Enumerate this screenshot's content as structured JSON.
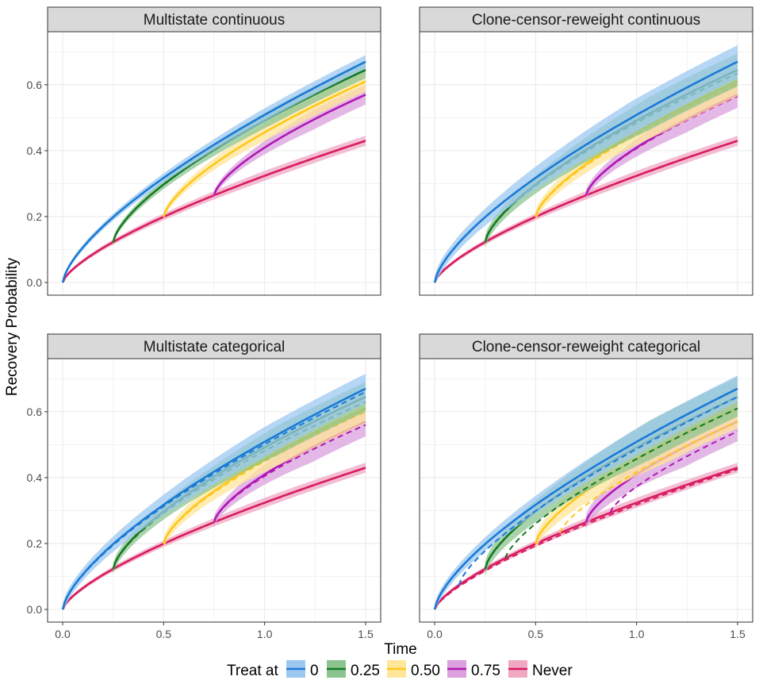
{
  "figure": {
    "ylabel": "Recovery Probability",
    "xlabel": "Time",
    "legend_title": "Treat at",
    "legend_items": [
      {
        "key": "0",
        "label": "0",
        "color": "#1a7ad6",
        "fill": "#9cc8f0"
      },
      {
        "key": "0.25",
        "label": "0.25",
        "color": "#157a22",
        "fill": "#8cc490"
      },
      {
        "key": "0.50",
        "label": "0.50",
        "color": "#ffc61a",
        "fill": "#ffe69a"
      },
      {
        "key": "0.75",
        "label": "0.75",
        "color": "#b018b4",
        "fill": "#dba0dd"
      },
      {
        "key": "never",
        "label": "Never",
        "color": "#d81b60",
        "fill": "#f0a8c3"
      }
    ]
  },
  "chart_data": [
    {
      "type": "line",
      "title": "Multistate continuous",
      "xlim": [
        0,
        1.5
      ],
      "ylim": [
        0,
        0.72
      ],
      "x_ticks": [
        "0.0",
        "0.5",
        "1.0",
        "1.5"
      ],
      "y_ticks": [
        "0.0",
        "0.2",
        "0.4",
        "0.6"
      ],
      "series": [
        {
          "name": "0",
          "start": 0,
          "y_end": 0.67,
          "band": 0.02,
          "dashed": null
        },
        {
          "name": "0.25",
          "start": 0.25,
          "y_end": 0.645,
          "band": 0.025,
          "dashed": null
        },
        {
          "name": "0.50",
          "start": 0.5,
          "y_end": 0.61,
          "band": 0.03,
          "dashed": null
        },
        {
          "name": "0.75",
          "start": 0.75,
          "y_end": 0.57,
          "band": 0.03,
          "dashed": null
        },
        {
          "name": "Never",
          "start": null,
          "y_end": 0.43,
          "band": 0.015,
          "dashed": null
        }
      ]
    },
    {
      "type": "line",
      "title": "Clone-censor-reweight continuous",
      "xlim": [
        0,
        1.5
      ],
      "ylim": [
        0,
        0.72
      ],
      "x_ticks": [
        "0.0",
        "0.5",
        "1.0",
        "1.5"
      ],
      "y_ticks": [
        "0.0",
        "0.2",
        "0.4",
        "0.6"
      ],
      "series": [
        {
          "name": "0",
          "start": 0,
          "y_end": 0.67,
          "band": 0.05,
          "dashed": 0.67
        },
        {
          "name": "0.25",
          "start": 0.25,
          "y_end": 0.645,
          "band": 0.05,
          "dashed": 0.635
        },
        {
          "name": "0.50",
          "start": 0.5,
          "y_end": 0.61,
          "band": 0.045,
          "dashed": 0.6
        },
        {
          "name": "0.75",
          "start": 0.75,
          "y_end": 0.57,
          "band": 0.04,
          "dashed": 0.565
        },
        {
          "name": "Never",
          "start": null,
          "y_end": 0.43,
          "band": 0.015,
          "dashed": 0.425
        }
      ]
    },
    {
      "type": "line",
      "title": "Multistate categorical",
      "xlim": [
        0,
        1.5
      ],
      "ylim": [
        0,
        0.72
      ],
      "x_ticks": [
        "0.0",
        "0.5",
        "1.0",
        "1.5"
      ],
      "y_ticks": [
        "0.0",
        "0.2",
        "0.4",
        "0.6"
      ],
      "series": [
        {
          "name": "0",
          "start": 0,
          "y_end": 0.67,
          "band": 0.045,
          "dashed": 0.66
        },
        {
          "name": "0.25",
          "start": 0.25,
          "y_end": 0.645,
          "band": 0.045,
          "dashed": 0.63
        },
        {
          "name": "0.50",
          "start": 0.5,
          "y_end": 0.61,
          "band": 0.045,
          "dashed": 0.6
        },
        {
          "name": "0.75",
          "start": 0.75,
          "y_end": 0.57,
          "band": 0.045,
          "dashed": 0.56
        },
        {
          "name": "Never",
          "start": null,
          "y_end": 0.43,
          "band": 0.015,
          "dashed": 0.425
        }
      ]
    },
    {
      "type": "line",
      "title": "Clone-censor-reweight categorical",
      "xlim": [
        0,
        1.5
      ],
      "ylim": [
        0,
        0.72
      ],
      "x_ticks": [
        "0.0",
        "0.5",
        "1.0",
        "1.5"
      ],
      "y_ticks": [
        "0.0",
        "0.2",
        "0.4",
        "0.6"
      ],
      "series": [
        {
          "name": "0",
          "start": 0,
          "y_end": 0.67,
          "band": 0.04,
          "dashed": 0.645,
          "dashed_start": 0.12
        },
        {
          "name": "0.25",
          "start": 0.25,
          "y_end": 0.645,
          "band": 0.06,
          "dashed": 0.61,
          "dashed_start": 0.35
        },
        {
          "name": "0.50",
          "start": 0.5,
          "y_end": 0.61,
          "band": 0.06,
          "dashed": 0.57,
          "dashed_start": 0.62
        },
        {
          "name": "0.75",
          "start": 0.75,
          "y_end": 0.57,
          "band": 0.06,
          "dashed": 0.54,
          "dashed_start": 0.87
        },
        {
          "name": "Never",
          "start": null,
          "y_end": 0.43,
          "band": 0.015,
          "dashed": 0.425,
          "dashed_start": 0
        }
      ]
    }
  ]
}
